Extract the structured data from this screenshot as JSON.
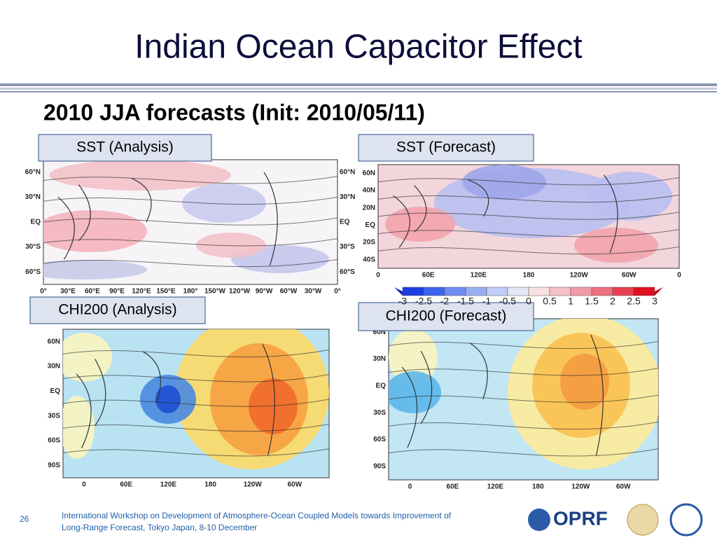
{
  "header": {
    "title": "Indian Ocean Capacitor Effect",
    "subtitle": "2010 JJA forecasts (Init: 2010/05/11)"
  },
  "panels": [
    {
      "label": "SST (Analysis)",
      "ylabels": [
        "60°N",
        "30°N",
        "EQ",
        "30°S",
        "60°S"
      ],
      "xlabels": [
        "0°",
        "30°E",
        "60°E",
        "90°E",
        "120°E",
        "150°E",
        "180°",
        "150°W",
        "120°W",
        "90°W",
        "60°W",
        "30°W",
        "0°"
      ]
    },
    {
      "label": "SST (Forecast)",
      "ylabels": [
        "60N",
        "40N",
        "20N",
        "EQ",
        "20S",
        "40S"
      ],
      "xlabels": [
        "0",
        "60E",
        "120E",
        "180",
        "120W",
        "60W",
        "0"
      ]
    },
    {
      "label": "CHI200 (Analysis)",
      "ylabels": [
        "60N",
        "30N",
        "EQ",
        "30S",
        "60S",
        "90S"
      ],
      "xlabels": [
        "0",
        "60E",
        "120E",
        "180",
        "120W",
        "60W"
      ]
    },
    {
      "label": "CHI200 (Forecast)",
      "ylabels": [
        "60N",
        "30N",
        "EQ",
        "30S",
        "60S",
        "90S"
      ],
      "xlabels": [
        "0",
        "60E",
        "120E",
        "180",
        "120W",
        "60W"
      ]
    }
  ],
  "colorbar": {
    "labels": [
      "-3",
      "-2.5",
      "-2",
      "-1.5",
      "-1",
      "-0.5",
      "0",
      "0.5",
      "1",
      "1.5",
      "2",
      "2.5",
      "3"
    ]
  },
  "footer": {
    "page": "26",
    "lines": [
      "International Workshop on Development of Atmosphere-Ocean Coupled Models towards Improvement of",
      "Long-Range Forecast, Tokyo Japan, 8-10 December"
    ],
    "logo": "OPRF"
  }
}
